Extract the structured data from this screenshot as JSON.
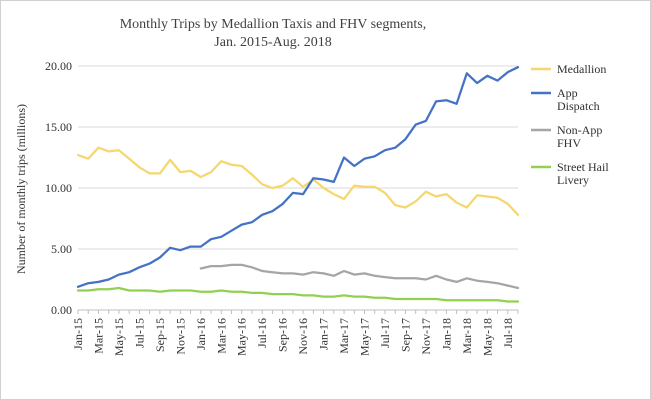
{
  "chart_data": {
    "type": "line",
    "title_lines": [
      "Monthly Trips by Medallion Taxis and FHV segments,",
      "Jan. 2015-Aug. 2018"
    ],
    "xlabel": "",
    "ylabel": "Number of monthly trips (millions)",
    "ylim": [
      0,
      20
    ],
    "yticks": [
      "0.00",
      "5.00",
      "10.00",
      "15.00",
      "20.00"
    ],
    "ytick_values": [
      0,
      5,
      10,
      15,
      20
    ],
    "x_tick_labels": [
      "Jan-15",
      "Mar-15",
      "May-15",
      "Jul-15",
      "Sep-15",
      "Nov-15",
      "Jan-16",
      "Mar-16",
      "May-16",
      "Jul-16",
      "Sep-16",
      "Nov-16",
      "Jan-17",
      "Mar-17",
      "May-17",
      "Jul-17",
      "Sep-17",
      "Nov-17",
      "Jan-18",
      "Mar-18",
      "May-18",
      "Jul-18"
    ],
    "months_count": 44,
    "grid": true,
    "legend_position": "right",
    "series": [
      {
        "name": "Medallion",
        "legend_lines": [
          "Medallion"
        ],
        "color": "#f5d76e",
        "values": [
          12.7,
          12.4,
          13.3,
          13.0,
          13.1,
          12.4,
          11.7,
          11.2,
          11.2,
          12.3,
          11.3,
          11.4,
          10.9,
          11.3,
          12.2,
          11.9,
          11.8,
          11.1,
          10.3,
          10.0,
          10.2,
          10.8,
          10.1,
          10.7,
          10.0,
          9.5,
          9.1,
          10.2,
          10.1,
          10.1,
          9.6,
          8.6,
          8.4,
          8.9,
          9.7,
          9.3,
          9.5,
          8.8,
          8.4,
          9.4,
          9.3,
          9.2,
          8.7,
          7.8
        ]
      },
      {
        "name": "App Dispatch",
        "legend_lines": [
          "App",
          "Dispatch"
        ],
        "color": "#4472c4",
        "values": [
          1.9,
          2.2,
          2.3,
          2.5,
          2.9,
          3.1,
          3.5,
          3.8,
          4.3,
          5.1,
          4.9,
          5.2,
          5.2,
          5.8,
          6.0,
          6.5,
          7.0,
          7.2,
          7.8,
          8.1,
          8.7,
          9.6,
          9.5,
          10.8,
          10.7,
          10.5,
          12.5,
          11.8,
          12.4,
          12.6,
          13.1,
          13.3,
          14.0,
          15.2,
          15.5,
          17.1,
          17.2,
          16.9,
          19.4,
          18.6,
          19.2,
          18.8,
          19.5,
          19.9
        ]
      },
      {
        "name": "Non-App FHV",
        "legend_lines": [
          "Non-App",
          "FHV"
        ],
        "color": "#a5a5a5",
        "start_index": 12,
        "values": [
          3.4,
          3.6,
          3.6,
          3.7,
          3.7,
          3.5,
          3.2,
          3.1,
          3.0,
          3.0,
          2.9,
          3.1,
          3.0,
          2.8,
          3.2,
          2.9,
          3.0,
          2.8,
          2.7,
          2.6,
          2.6,
          2.6,
          2.5,
          2.8,
          2.5,
          2.3,
          2.6,
          2.4,
          2.3,
          2.2,
          2.0,
          1.8
        ]
      },
      {
        "name": "Street Hail Livery",
        "legend_lines": [
          "Street Hail",
          "Livery"
        ],
        "color": "#92d050",
        "values": [
          1.6,
          1.6,
          1.7,
          1.7,
          1.8,
          1.6,
          1.6,
          1.6,
          1.5,
          1.6,
          1.6,
          1.6,
          1.5,
          1.5,
          1.6,
          1.5,
          1.5,
          1.4,
          1.4,
          1.3,
          1.3,
          1.3,
          1.2,
          1.2,
          1.1,
          1.1,
          1.2,
          1.1,
          1.1,
          1.0,
          1.0,
          0.9,
          0.9,
          0.9,
          0.9,
          0.9,
          0.8,
          0.8,
          0.8,
          0.8,
          0.8,
          0.8,
          0.7,
          0.7
        ]
      }
    ]
  }
}
